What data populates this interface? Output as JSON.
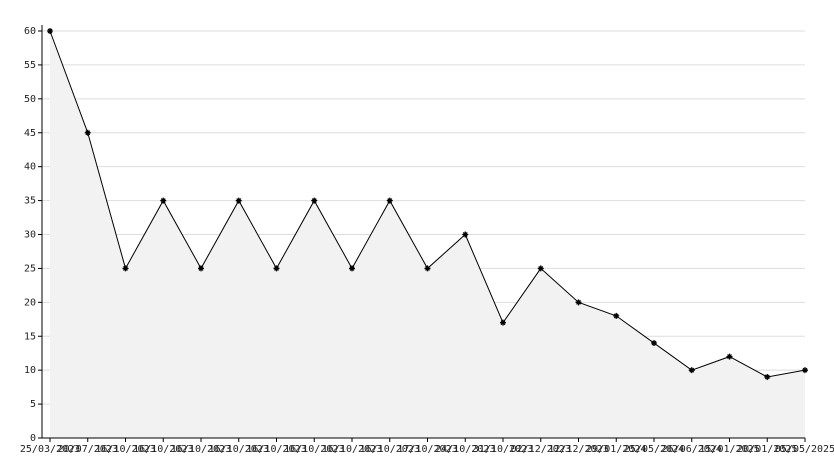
{
  "chart_data": {
    "type": "line",
    "x": [
      "25/03/2023",
      "20/07/2023",
      "16/10/2023",
      "16/10/2023",
      "16/10/2023",
      "16/10/2023",
      "16/10/2023",
      "16/10/2023",
      "16/10/2023",
      "16/10/2023",
      "17/10/2023",
      "24/10/2023",
      "31/10/2023",
      "02/12/2023",
      "12/12/2023",
      "29/01/2024",
      "25/05/2024",
      "26/06/2024",
      "15/01/2025",
      "20/01/2025",
      "05/05/2025"
    ],
    "series": [
      {
        "color": "#000000",
        "values": [
          60,
          45,
          25,
          35,
          25,
          35,
          25,
          35,
          25,
          35,
          25,
          30,
          17,
          25,
          20,
          18,
          14,
          10,
          12,
          9,
          10
        ]
      }
    ],
    "ylim": [
      0,
      60
    ],
    "yticks": [
      0,
      5,
      10,
      15,
      20,
      25,
      30,
      35,
      40,
      45,
      50,
      55,
      60
    ],
    "grid": true,
    "area_fill": "#f2f2f2"
  }
}
